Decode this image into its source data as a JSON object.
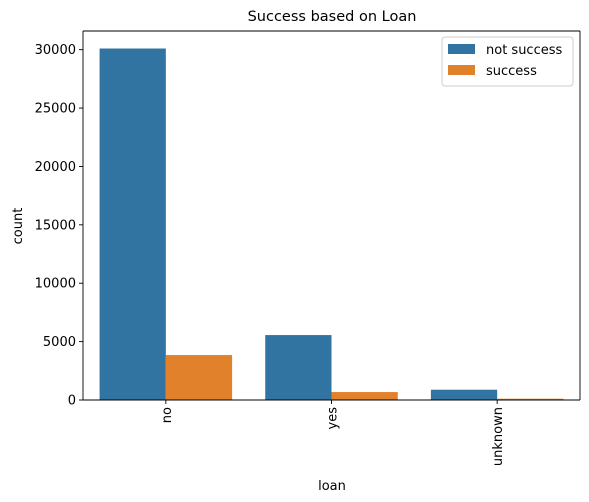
{
  "chart_data": {
    "type": "bar",
    "title": "Success based on Loan",
    "xlabel": "loan",
    "ylabel": "count",
    "categories": [
      "no",
      "yes",
      "unknown"
    ],
    "series": [
      {
        "name": "not success",
        "values": [
          30100,
          5560,
          880
        ],
        "color": "#3274a1"
      },
      {
        "name": "success",
        "values": [
          3850,
          680,
          110
        ],
        "color": "#e1812c"
      }
    ],
    "ylim": [
      0,
      31600
    ],
    "yticks": [
      0,
      5000,
      10000,
      15000,
      20000,
      25000,
      30000
    ],
    "legend_position": "top-right",
    "grid": false
  }
}
